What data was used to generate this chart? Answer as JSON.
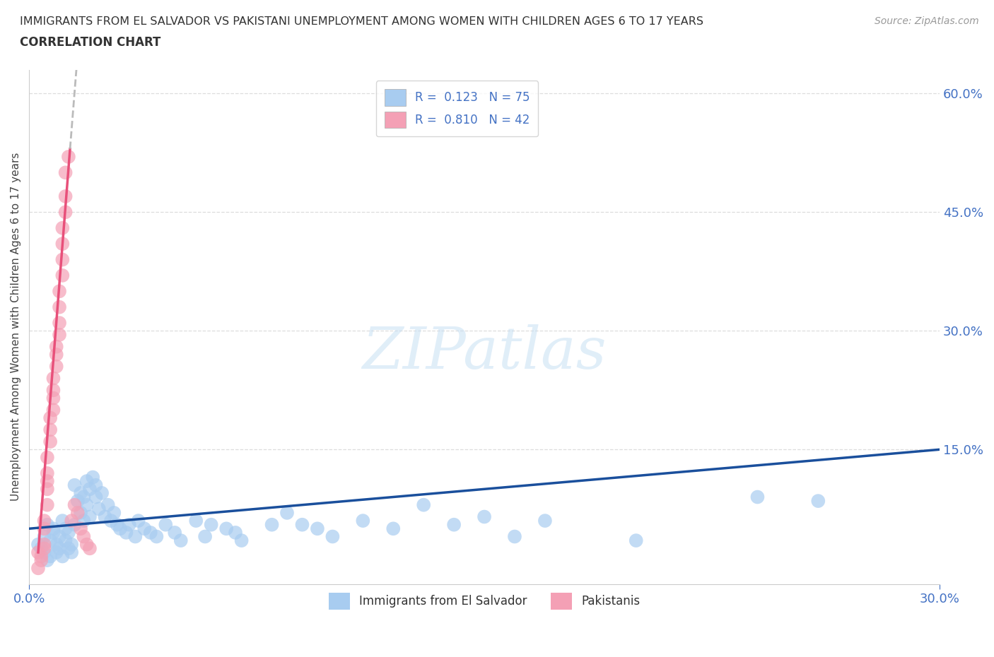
{
  "title_line1": "IMMIGRANTS FROM EL SALVADOR VS PAKISTANI UNEMPLOYMENT AMONG WOMEN WITH CHILDREN AGES 6 TO 17 YEARS",
  "title_line2": "CORRELATION CHART",
  "source": "Source: ZipAtlas.com",
  "ylabel_label": "Unemployment Among Women with Children Ages 6 to 17 years",
  "watermark": "ZIPatlas",
  "blue_color": "#A8CCF0",
  "pink_color": "#F4A0B5",
  "trendline_blue_color": "#1A4F9C",
  "trendline_pink_color": "#E8507A",
  "trendline_dashed_color": "#BBBBBB",
  "blue_scatter": [
    [
      0.003,
      0.03
    ],
    [
      0.004,
      0.025
    ],
    [
      0.005,
      0.04
    ],
    [
      0.005,
      0.02
    ],
    [
      0.006,
      0.055
    ],
    [
      0.006,
      0.01
    ],
    [
      0.007,
      0.035
    ],
    [
      0.007,
      0.015
    ],
    [
      0.008,
      0.045
    ],
    [
      0.008,
      0.05
    ],
    [
      0.009,
      0.02
    ],
    [
      0.009,
      0.03
    ],
    [
      0.01,
      0.04
    ],
    [
      0.01,
      0.025
    ],
    [
      0.011,
      0.06
    ],
    [
      0.011,
      0.015
    ],
    [
      0.012,
      0.035
    ],
    [
      0.012,
      0.05
    ],
    [
      0.013,
      0.025
    ],
    [
      0.013,
      0.045
    ],
    [
      0.014,
      0.03
    ],
    [
      0.014,
      0.02
    ],
    [
      0.015,
      0.105
    ],
    [
      0.015,
      0.055
    ],
    [
      0.016,
      0.085
    ],
    [
      0.017,
      0.095
    ],
    [
      0.017,
      0.07
    ],
    [
      0.018,
      0.09
    ],
    [
      0.018,
      0.06
    ],
    [
      0.019,
      0.11
    ],
    [
      0.019,
      0.08
    ],
    [
      0.02,
      0.1
    ],
    [
      0.02,
      0.065
    ],
    [
      0.021,
      0.115
    ],
    [
      0.022,
      0.105
    ],
    [
      0.022,
      0.09
    ],
    [
      0.023,
      0.075
    ],
    [
      0.024,
      0.095
    ],
    [
      0.025,
      0.065
    ],
    [
      0.026,
      0.08
    ],
    [
      0.027,
      0.06
    ],
    [
      0.028,
      0.07
    ],
    [
      0.029,
      0.055
    ],
    [
      0.03,
      0.05
    ],
    [
      0.032,
      0.045
    ],
    [
      0.033,
      0.055
    ],
    [
      0.035,
      0.04
    ],
    [
      0.036,
      0.06
    ],
    [
      0.038,
      0.05
    ],
    [
      0.04,
      0.045
    ],
    [
      0.042,
      0.04
    ],
    [
      0.045,
      0.055
    ],
    [
      0.048,
      0.045
    ],
    [
      0.05,
      0.035
    ],
    [
      0.055,
      0.06
    ],
    [
      0.058,
      0.04
    ],
    [
      0.06,
      0.055
    ],
    [
      0.065,
      0.05
    ],
    [
      0.068,
      0.045
    ],
    [
      0.07,
      0.035
    ],
    [
      0.08,
      0.055
    ],
    [
      0.085,
      0.07
    ],
    [
      0.09,
      0.055
    ],
    [
      0.095,
      0.05
    ],
    [
      0.1,
      0.04
    ],
    [
      0.11,
      0.06
    ],
    [
      0.12,
      0.05
    ],
    [
      0.13,
      0.08
    ],
    [
      0.14,
      0.055
    ],
    [
      0.15,
      0.065
    ],
    [
      0.16,
      0.04
    ],
    [
      0.17,
      0.06
    ],
    [
      0.2,
      0.035
    ],
    [
      0.24,
      0.09
    ],
    [
      0.26,
      0.085
    ]
  ],
  "pink_scatter": [
    [
      0.003,
      0.02
    ],
    [
      0.004,
      0.015
    ],
    [
      0.004,
      0.01
    ],
    [
      0.005,
      0.025
    ],
    [
      0.005,
      0.03
    ],
    [
      0.005,
      0.05
    ],
    [
      0.005,
      0.06
    ],
    [
      0.006,
      0.08
    ],
    [
      0.006,
      0.1
    ],
    [
      0.006,
      0.11
    ],
    [
      0.006,
      0.12
    ],
    [
      0.006,
      0.14
    ],
    [
      0.007,
      0.16
    ],
    [
      0.007,
      0.175
    ],
    [
      0.007,
      0.19
    ],
    [
      0.008,
      0.2
    ],
    [
      0.008,
      0.215
    ],
    [
      0.008,
      0.225
    ],
    [
      0.008,
      0.24
    ],
    [
      0.009,
      0.255
    ],
    [
      0.009,
      0.27
    ],
    [
      0.009,
      0.28
    ],
    [
      0.01,
      0.295
    ],
    [
      0.01,
      0.31
    ],
    [
      0.01,
      0.33
    ],
    [
      0.01,
      0.35
    ],
    [
      0.011,
      0.37
    ],
    [
      0.011,
      0.39
    ],
    [
      0.011,
      0.41
    ],
    [
      0.011,
      0.43
    ],
    [
      0.012,
      0.45
    ],
    [
      0.012,
      0.47
    ],
    [
      0.012,
      0.5
    ],
    [
      0.013,
      0.52
    ],
    [
      0.014,
      0.06
    ],
    [
      0.015,
      0.08
    ],
    [
      0.016,
      0.07
    ],
    [
      0.017,
      0.05
    ],
    [
      0.018,
      0.04
    ],
    [
      0.019,
      0.03
    ],
    [
      0.02,
      0.025
    ],
    [
      0.003,
      0.0
    ]
  ],
  "xlim": [
    0.0,
    0.3
  ],
  "ylim": [
    -0.02,
    0.63
  ],
  "xtick_positions": [
    0.0,
    0.3
  ],
  "xtick_labels": [
    "0.0%",
    "30.0%"
  ],
  "ytick_positions": [
    0.0,
    0.15,
    0.3,
    0.45,
    0.6
  ],
  "ytick_labels": [
    "",
    "15.0%",
    "30.0%",
    "45.0%",
    "60.0%"
  ],
  "grid_color": "#DDDDDD",
  "bg_color": "#FFFFFF",
  "title_color": "#333333",
  "axis_color": "#4472C4",
  "source_color": "#999999"
}
